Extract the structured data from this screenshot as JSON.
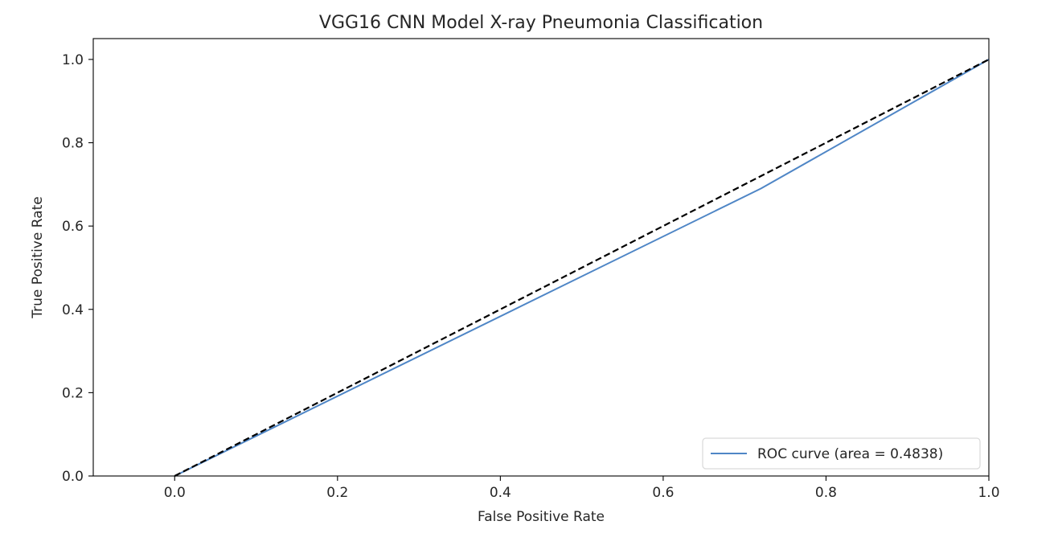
{
  "chart_data": {
    "type": "line",
    "title": "VGG16 CNN Model X-ray Pneumonia Classification",
    "xlabel": "False Positive Rate",
    "ylabel": "True Positive Rate",
    "xlim": [
      -0.1,
      1.0
    ],
    "ylim": [
      0.0,
      1.05
    ],
    "x_ticks": [
      0.0,
      0.2,
      0.4,
      0.6,
      0.8,
      1.0
    ],
    "y_ticks": [
      0.0,
      0.2,
      0.4,
      0.6,
      0.8,
      1.0
    ],
    "x_tick_labels": [
      "0.0",
      "0.2",
      "0.4",
      "0.6",
      "0.8",
      "1.0"
    ],
    "y_tick_labels": [
      "0.0",
      "0.2",
      "0.4",
      "0.6",
      "0.8",
      "1.0"
    ],
    "grid": false,
    "legend_position": "bottom-right",
    "series": [
      {
        "name": "ROC curve (area = 0.4838)",
        "color": "#4f86c6",
        "style": "solid",
        "x": [
          0.0,
          0.72,
          1.0
        ],
        "y": [
          0.0,
          0.69,
          1.0
        ]
      },
      {
        "name": "",
        "color": "#000000",
        "style": "dashed",
        "x": [
          0.0,
          1.0
        ],
        "y": [
          0.0,
          1.0
        ]
      }
    ]
  }
}
